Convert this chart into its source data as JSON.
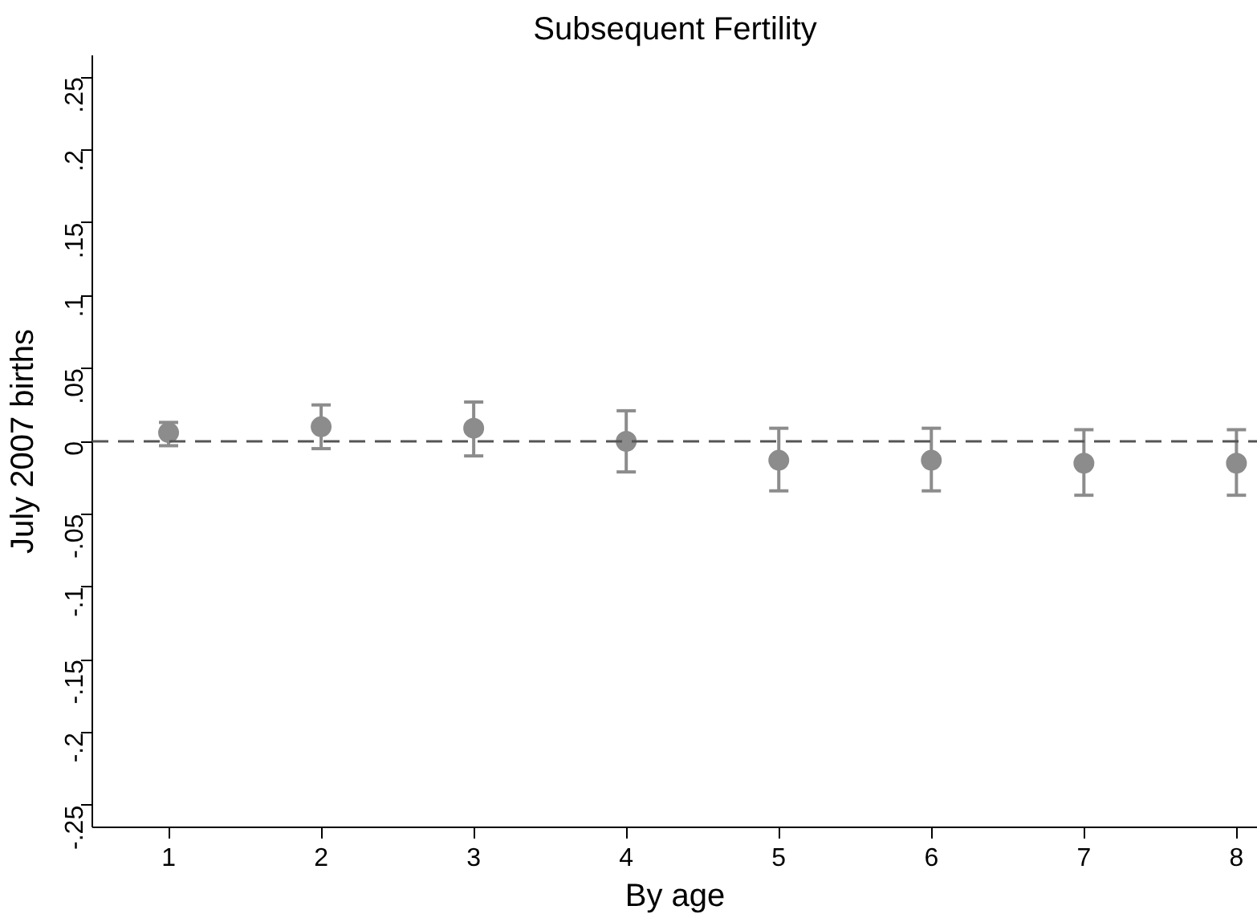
{
  "chart_data": {
    "type": "scatter",
    "title": "Subsequent Fertility",
    "xlabel": "By age",
    "ylabel": "July 2007 births",
    "x": [
      1,
      2,
      3,
      4,
      5,
      6,
      7,
      8
    ],
    "series": [
      {
        "color": "#8c8c8c",
        "values": [
          0.006,
          0.01,
          0.009,
          0.0,
          -0.013,
          -0.013,
          -0.015,
          -0.015
        ],
        "errors": [
          [
            -0.003,
            0.013
          ],
          [
            -0.005,
            0.025
          ],
          [
            -0.01,
            0.027
          ],
          [
            -0.021,
            0.021
          ],
          [
            -0.034,
            0.009
          ],
          [
            -0.034,
            0.009
          ],
          [
            -0.037,
            0.008
          ],
          [
            -0.037,
            0.008
          ]
        ]
      }
    ],
    "xlim": [
      0.5,
      8.14
    ],
    "xticks": [
      1,
      2,
      3,
      4,
      5,
      6,
      7,
      8
    ],
    "ylim": [
      -0.265,
      0.265
    ],
    "yticks": [
      {
        "value": -0.25,
        "label": "-.25"
      },
      {
        "value": -0.2,
        "label": "-.2"
      },
      {
        "value": -0.15,
        "label": "-.15"
      },
      {
        "value": -0.1,
        "label": "-.1"
      },
      {
        "value": -0.05,
        "label": "-.05"
      },
      {
        "value": 0,
        "label": "0"
      },
      {
        "value": 0.05,
        "label": ".05"
      },
      {
        "value": 0.1,
        "label": ".1"
      },
      {
        "value": 0.15,
        "label": ".15"
      },
      {
        "value": 0.2,
        "label": ".2"
      },
      {
        "value": 0.25,
        "label": ".25"
      }
    ],
    "ref_lines": [
      {
        "axis": "y",
        "value": 0,
        "color": "#555555",
        "line_style": "dashed"
      }
    ],
    "marker": "circle",
    "grid": false
  }
}
